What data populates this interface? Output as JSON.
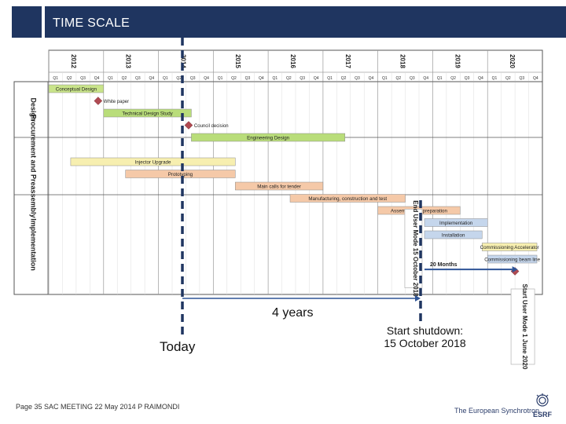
{
  "header": {
    "title": "TIME SCALE"
  },
  "chart_data": {
    "type": "gantt",
    "years": [
      "2012",
      "2013",
      "2014",
      "2015",
      "2016",
      "2017",
      "2018",
      "2019",
      "2020"
    ],
    "quarters": [
      "Q1",
      "Q2",
      "Q3",
      "Q4"
    ],
    "groups": [
      "Design",
      "Procurement and Preassembly",
      "Implementation"
    ],
    "tasks": [
      {
        "label": "Conceptual Design",
        "start": 2012.0,
        "end": 2013.0,
        "row": 0,
        "color": "#c9e48a"
      },
      {
        "label": "Technical Design Study",
        "start": 2013.0,
        "end": 2014.6,
        "row": 2,
        "color": "#b9dd7a"
      },
      {
        "label": "Engineering Design",
        "start": 2014.6,
        "end": 2017.4,
        "row": 4,
        "color": "#b9dd7a"
      },
      {
        "label": "Injector Upgrade",
        "start": 2012.4,
        "end": 2015.4,
        "row": 6,
        "color": "#f7efb0"
      },
      {
        "label": "Prototyping",
        "start": 2013.4,
        "end": 2015.4,
        "row": 7,
        "color": "#f5c9a8"
      },
      {
        "label": "Main calls for tender",
        "start": 2015.4,
        "end": 2017.0,
        "row": 8,
        "color": "#f5c9a8"
      },
      {
        "label": "Manufacturing, construction and test",
        "start": 2016.4,
        "end": 2018.5,
        "row": 9,
        "color": "#f5c9a8"
      },
      {
        "label": "Assembly and preparation",
        "start": 2018.0,
        "end": 2019.5,
        "row": 10,
        "color": "#f5c9a8"
      },
      {
        "label": "Implementation",
        "start": 2018.85,
        "end": 2020.0,
        "row": 11,
        "color": "#c5d6ec"
      },
      {
        "label": "Installation",
        "start": 2018.85,
        "end": 2019.9,
        "row": 12,
        "color": "#c5d6ec"
      },
      {
        "label": "Commissioning Accelerator",
        "start": 2019.9,
        "end": 2020.9,
        "row": 13,
        "color": "#f7efb0"
      },
      {
        "label": "Commissioning beam line",
        "start": 2020.0,
        "end": 2020.9,
        "row": 14,
        "color": "#c5d6ec"
      }
    ],
    "milestones": [
      {
        "label": "White paper",
        "t": 2012.9,
        "row": 1
      },
      {
        "label": "Council decision",
        "t": 2014.55,
        "row": 3
      },
      {
        "label": "",
        "t": 2020.5,
        "row": 15
      }
    ],
    "annotations": {
      "end_user_mode": "End User Mode 15 October 2018",
      "start_user_mode": "Start User Mode 1 June 2020",
      "twenty_months": "20 Months",
      "four_years": "4 years",
      "today": "Today",
      "start_shutdown_line1": "Start shutdown:",
      "start_shutdown_line2": "15 October 2018"
    }
  },
  "footer": {
    "left": "Page 35  SAC MEETING  22 May 2014  P RAIMONDI",
    "right": "The European Synchrotron",
    "logo_text": "ESRF"
  }
}
